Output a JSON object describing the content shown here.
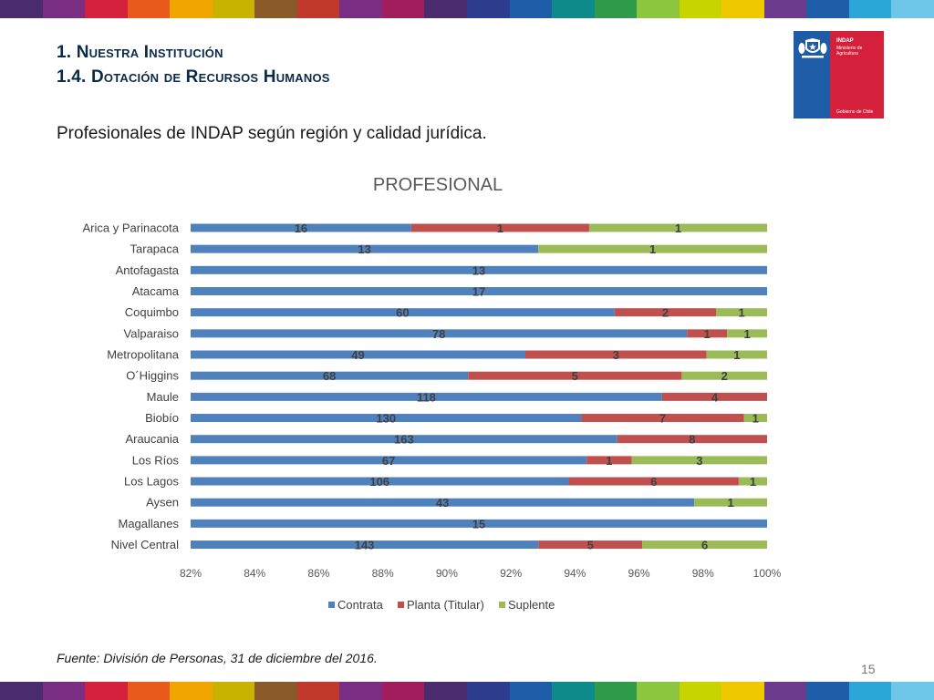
{
  "page": {
    "heading_line1": "1. Nuestra Institución",
    "heading_line2": "1.4. Dotación de Recursos Humanos",
    "subtitle": "Profesionales de INDAP según región y calidad jurídica.",
    "source": "Fuente: División de Personas, 31 de diciembre del 2016.",
    "page_number": "15"
  },
  "logo": {
    "name": "INDAP",
    "subtitle": "Ministerio de Agricultura",
    "government": "Gobierno de Chile"
  },
  "stripe_colors": [
    "#4a2b6b",
    "#7a2e83",
    "#d4203b",
    "#e85a1c",
    "#f0a500",
    "#c8b400",
    "#8a5a2b",
    "#c0392b",
    "#7a2e83",
    "#a11d5c",
    "#4a2b6b",
    "#2d3c8c",
    "#1f5ca8",
    "#0f8a8a",
    "#2e9a4a",
    "#8cc63f",
    "#c8d400",
    "#f0c800",
    "#6b3a8c",
    "#1f5ca8",
    "#2aa6d9",
    "#6ec6e8"
  ],
  "chart_data": {
    "type": "bar",
    "orientation": "horizontal",
    "stacked": "percent",
    "title": "PROFESIONAL",
    "categories": [
      "Arica y Parinacota",
      "Tarapaca",
      "Antofagasta",
      "Atacama",
      "Coquimbo",
      "Valparaiso",
      "Metropolitana",
      "O´Higgins",
      "Maule",
      "Biobío",
      "Araucania",
      "Los Ríos",
      "Los Lagos",
      "Aysen",
      "Magallanes",
      "Nivel Central"
    ],
    "series": [
      {
        "name": "Contrata",
        "color": "#4f81bd",
        "values": [
          16,
          13,
          13,
          17,
          60,
          78,
          49,
          68,
          118,
          130,
          163,
          67,
          106,
          43,
          15,
          143
        ]
      },
      {
        "name": "Planta (Titular)",
        "color": "#c0504d",
        "values": [
          1,
          0,
          0,
          0,
          2,
          1,
          3,
          5,
          4,
          7,
          8,
          1,
          6,
          0,
          0,
          5
        ]
      },
      {
        "name": "Suplente",
        "color": "#9bbb59",
        "values": [
          1,
          1,
          0,
          0,
          1,
          1,
          1,
          2,
          0,
          1,
          0,
          3,
          1,
          1,
          0,
          6
        ]
      }
    ],
    "xlim": [
      0.82,
      1.0
    ],
    "xticks": [
      "82%",
      "84%",
      "86%",
      "88%",
      "90%",
      "92%",
      "94%",
      "96%",
      "98%",
      "100%"
    ],
    "legend_position": "bottom",
    "grid": false
  }
}
